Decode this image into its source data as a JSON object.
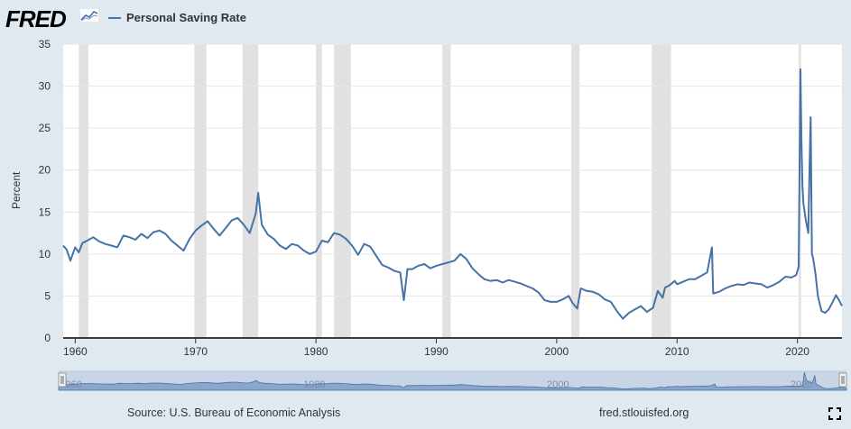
{
  "header": {
    "logo_text": "FRED",
    "legend_label": "Personal Saving Rate",
    "series_color": "#4572a7"
  },
  "footer": {
    "source": "Source: U.S. Bureau of Economic Analysis",
    "site": "fred.stlouisfed.org"
  },
  "chart_data": {
    "type": "line",
    "title": "",
    "xlabel": "",
    "ylabel": "Percent",
    "xlim": [
      1959.0,
      2023.7
    ],
    "ylim": [
      0,
      35
    ],
    "yticks": [
      0,
      5,
      10,
      15,
      20,
      25,
      30,
      35
    ],
    "xticks": [
      1960,
      1970,
      1980,
      1990,
      2000,
      2010,
      2020
    ],
    "grid": true,
    "legend": "top-left",
    "navigator_labels": [
      "1960",
      "1980",
      "2000",
      "2020"
    ],
    "recessions": [
      [
        1960.3,
        1961.1
      ],
      [
        1969.9,
        1970.9
      ],
      [
        1973.9,
        1975.2
      ],
      [
        1980.0,
        1980.5
      ],
      [
        1981.5,
        1982.9
      ],
      [
        1990.5,
        1991.2
      ],
      [
        2001.2,
        2001.9
      ],
      [
        2007.9,
        2009.5
      ],
      [
        2020.1,
        2020.3
      ]
    ],
    "series": [
      {
        "name": "Personal Saving Rate",
        "x": [
          1959.0,
          1959.3,
          1959.6,
          1960.0,
          1960.3,
          1960.6,
          1961.0,
          1961.5,
          1962.0,
          1962.5,
          1963.0,
          1963.5,
          1964.0,
          1964.5,
          1965.0,
          1965.5,
          1966.0,
          1966.5,
          1967.0,
          1967.5,
          1968.0,
          1968.5,
          1969.0,
          1969.5,
          1970.0,
          1970.5,
          1971.0,
          1971.5,
          1972.0,
          1972.5,
          1973.0,
          1973.5,
          1974.0,
          1974.5,
          1975.0,
          1975.2,
          1975.5,
          1976.0,
          1976.5,
          1977.0,
          1977.5,
          1978.0,
          1978.5,
          1979.0,
          1979.5,
          1980.0,
          1980.5,
          1981.0,
          1981.5,
          1982.0,
          1982.5,
          1983.0,
          1983.5,
          1984.0,
          1984.5,
          1985.0,
          1985.5,
          1986.0,
          1986.5,
          1987.0,
          1987.3,
          1987.6,
          1988.0,
          1988.5,
          1989.0,
          1989.5,
          1990.0,
          1990.5,
          1991.0,
          1991.5,
          1992.0,
          1992.5,
          1993.0,
          1993.5,
          1994.0,
          1994.5,
          1995.0,
          1995.5,
          1996.0,
          1996.5,
          1997.0,
          1997.5,
          1998.0,
          1998.5,
          1999.0,
          1999.5,
          2000.0,
          2000.5,
          2001.0,
          2001.3,
          2001.7,
          2002.0,
          2002.5,
          2003.0,
          2003.5,
          2004.0,
          2004.5,
          2005.0,
          2005.5,
          2006.0,
          2006.5,
          2007.0,
          2007.5,
          2008.0,
          2008.4,
          2008.8,
          2009.0,
          2009.4,
          2009.8,
          2010.0,
          2010.5,
          2011.0,
          2011.5,
          2012.0,
          2012.5,
          2012.9,
          2013.0,
          2013.5,
          2014.0,
          2014.5,
          2015.0,
          2015.5,
          2016.0,
          2016.5,
          2017.0,
          2017.5,
          2018.0,
          2018.5,
          2019.0,
          2019.5,
          2019.9,
          2020.1,
          2020.25,
          2020.33,
          2020.42,
          2020.5,
          2020.7,
          2020.9,
          2021.0,
          2021.1,
          2021.2,
          2021.3,
          2021.5,
          2021.7,
          2022.0,
          2022.3,
          2022.6,
          2022.9,
          2023.2,
          2023.5,
          2023.7
        ],
        "values": [
          11.0,
          10.5,
          9.2,
          10.8,
          10.2,
          11.3,
          11.6,
          12.0,
          11.5,
          11.2,
          11.0,
          10.8,
          12.2,
          12.0,
          11.7,
          12.4,
          11.9,
          12.6,
          12.8,
          12.4,
          11.6,
          11.0,
          10.4,
          11.8,
          12.8,
          13.4,
          13.9,
          13.0,
          12.2,
          13.1,
          14.0,
          14.3,
          13.5,
          12.5,
          14.8,
          17.3,
          13.5,
          12.3,
          11.8,
          11.0,
          10.6,
          11.2,
          11.0,
          10.4,
          10.0,
          10.3,
          11.6,
          11.4,
          12.5,
          12.3,
          11.8,
          11.0,
          9.9,
          11.2,
          10.9,
          9.8,
          8.7,
          8.4,
          8.0,
          7.8,
          4.5,
          8.2,
          8.2,
          8.6,
          8.8,
          8.3,
          8.6,
          8.8,
          9.0,
          9.2,
          10.0,
          9.4,
          8.3,
          7.6,
          7.0,
          6.8,
          6.9,
          6.6,
          6.9,
          6.7,
          6.5,
          6.2,
          5.9,
          5.4,
          4.5,
          4.3,
          4.3,
          4.6,
          5.0,
          4.2,
          3.5,
          5.9,
          5.6,
          5.5,
          5.2,
          4.6,
          4.3,
          3.2,
          2.3,
          3.0,
          3.4,
          3.8,
          3.1,
          3.6,
          5.6,
          4.8,
          6.0,
          6.3,
          6.8,
          6.4,
          6.7,
          7.0,
          7.0,
          7.4,
          7.8,
          10.8,
          5.3,
          5.5,
          5.9,
          6.2,
          6.4,
          6.3,
          6.6,
          6.5,
          6.4,
          6.0,
          6.3,
          6.7,
          7.3,
          7.2,
          7.5,
          8.5,
          32.0,
          24.0,
          18.0,
          16.0,
          14.0,
          12.5,
          20.0,
          26.3,
          10.0,
          9.5,
          7.6,
          5.0,
          3.2,
          3.0,
          3.4,
          4.2,
          5.1,
          4.4,
          3.8
        ]
      }
    ]
  }
}
